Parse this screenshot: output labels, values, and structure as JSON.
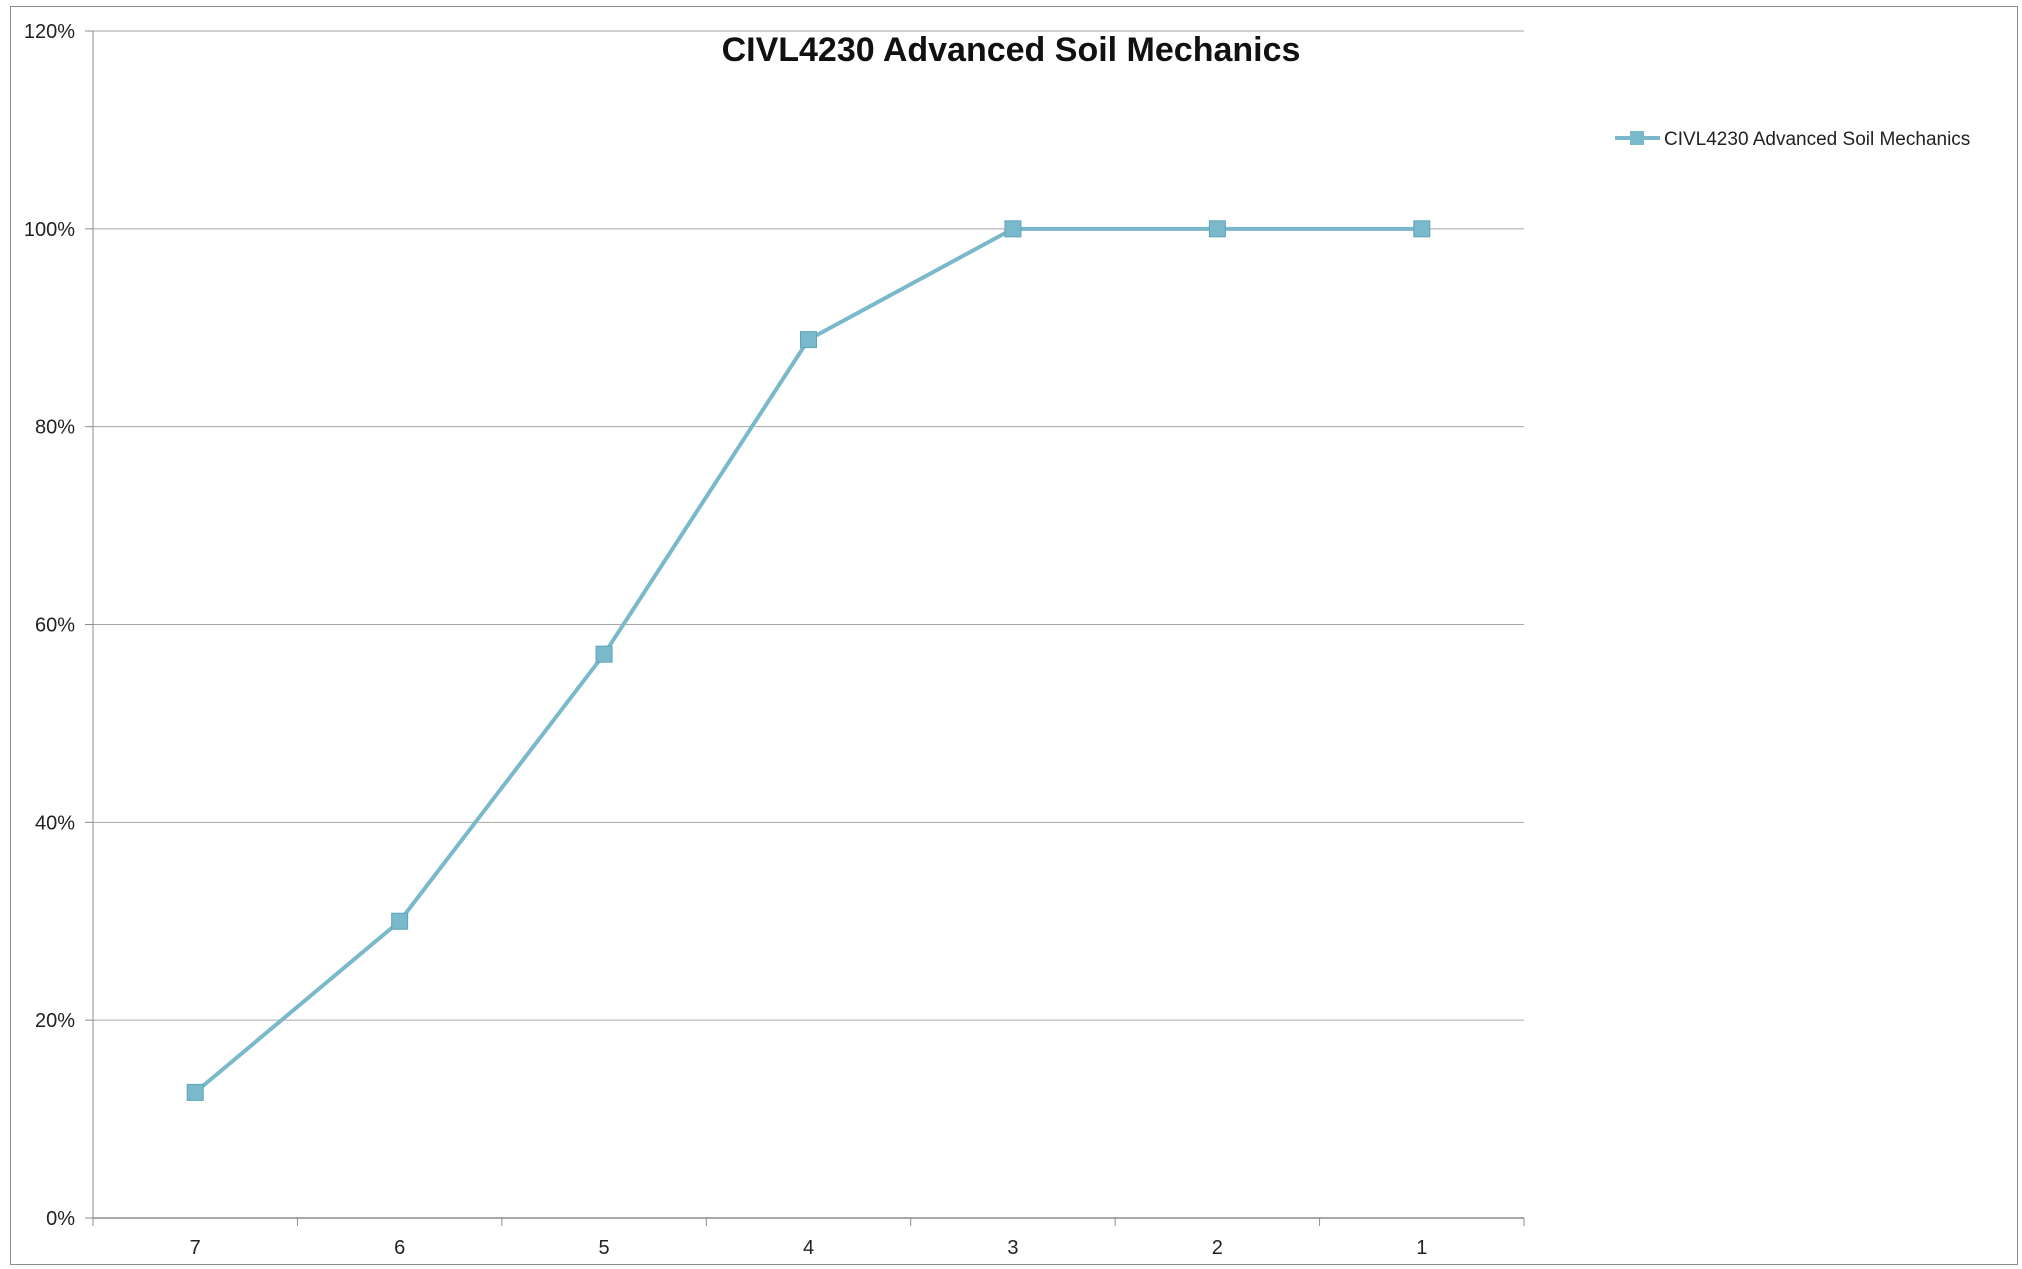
{
  "chart_data": {
    "type": "line",
    "title": "CIVL4230 Advanced Soil Mechanics",
    "xlabel": "",
    "ylabel": "",
    "categories": [
      "7",
      "6",
      "5",
      "4",
      "3",
      "2",
      "1"
    ],
    "series": [
      {
        "name": "CIVL4230 Advanced Soil Mechanics",
        "values": [
          0.127,
          0.3,
          0.57,
          0.888,
          1.0,
          1.0,
          1.0
        ],
        "color": "#7ab8cc"
      }
    ],
    "ylim": [
      0,
      1.2
    ],
    "yticks": [
      0,
      0.2,
      0.4,
      0.6,
      0.8,
      1.0,
      1.2
    ],
    "ytick_labels": [
      "0%",
      "20%",
      "40%",
      "60%",
      "80%",
      "100%",
      "120%"
    ],
    "grid": true,
    "legend_position": "right",
    "marker": "square"
  }
}
